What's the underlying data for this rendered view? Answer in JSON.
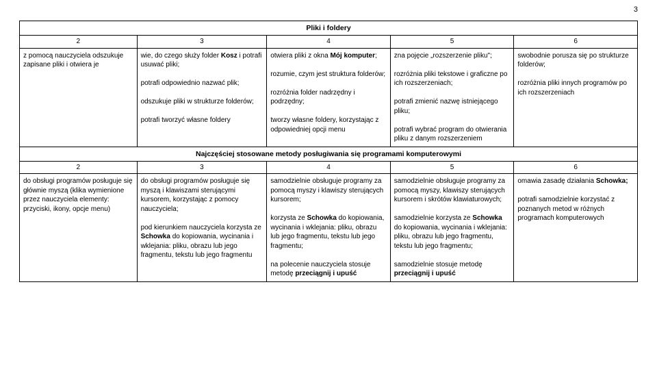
{
  "page_number": "3",
  "table": {
    "section1_title": "Pliki i foldery",
    "section2_title": "Najczęściej stosowane metody posługiwania się programami komputerowymi",
    "num_headers": [
      "2",
      "3",
      "4",
      "5",
      "6"
    ],
    "row1": {
      "c1": "z pomocą nauczyciela odszukuje zapisane pliki i otwiera je",
      "c2a": "wie, do czego służy folder ",
      "c2b": " i potrafi usuwać pliki;",
      "c2_bold1": "Kosz",
      "c2c": "potrafi odpowiednio nazwać plik;",
      "c2d": "odszukuje pliki w strukturze folderów;",
      "c2e": "potrafi tworzyć własne foldery",
      "c3a": "otwiera pliki z okna ",
      "c3_bold1": "Mój komputer",
      "c3a2": ";",
      "c3b": "rozumie, czym jest struktura folderów;",
      "c3c": "rozróżnia folder nadrzędny i podrzędny;",
      "c3d": "tworzy własne foldery, korzystając z odpowiedniej opcji menu",
      "c4a": "zna pojęcie „rozszerzenie pliku\";",
      "c4b": "rozróżnia pliki tekstowe i graficzne po ich rozszerzeniach;",
      "c4c": "potrafi zmienić nazwę istniejącego pliku;",
      "c4d": "potrafi wybrać program do otwierania pliku z danym rozszerzeniem",
      "c5a": "swobodnie porusza się po strukturze folderów;",
      "c5b": "rozróżnia pliki innych programów po ich rozszerzeniach"
    },
    "row2": {
      "c1a": "do obsługi programów posługuje się głównie myszą (klika wymienione przez nauczyciela elementy: przyciski, ikony, opcje menu)",
      "c2a": "do obsługi programów posługuje się myszą i klawiszami sterującymi kursorem, korzystając z pomocy nauczyciela;",
      "c2b": "pod kierunkiem nauczyciela korzysta ze ",
      "c2_bold1": "Schowka",
      "c2b2": " do kopiowania, wycinania i wklejania: pliku, obrazu lub jego fragmentu, tekstu lub jego fragmentu",
      "c3a": "samodzielnie obsługuje programy za pomocą myszy i klawiszy sterujących kursorem;",
      "c3b": "korzysta ze ",
      "c3_bold1": "Schowka",
      "c3b2": " do kopiowania, wycinania i wklejania: pliku, obrazu lub jego fragmentu, tekstu lub jego fragmentu;",
      "c3c": "na polecenie nauczyciela stosuje metodę ",
      "c3_bold2": "przeciągnij i upuść",
      "c4a": "samodzielnie obsługuje programy za pomocą myszy, klawiszy sterujących kursorem i skrótów klawiaturowych;",
      "c4b": "samodzielnie korzysta ze ",
      "c4_bold1": "Schowka",
      "c4b2": " do kopiowania, wycinania i wklejania: pliku, obrazu lub jego fragmentu, tekstu lub jego fragmentu;",
      "c4c": "samodzielnie stosuje metodę ",
      "c4_bold2": "przeciągnij i upuść",
      "c5a": "omawia zasadę działania ",
      "c5_bold1": "Schowka;",
      "c5b": "potrafi samodzielnie korzystać z poznanych metod w różnych programach komputerowych"
    }
  },
  "colors": {
    "text": "#000000",
    "border": "#000000",
    "background": "#ffffff"
  }
}
